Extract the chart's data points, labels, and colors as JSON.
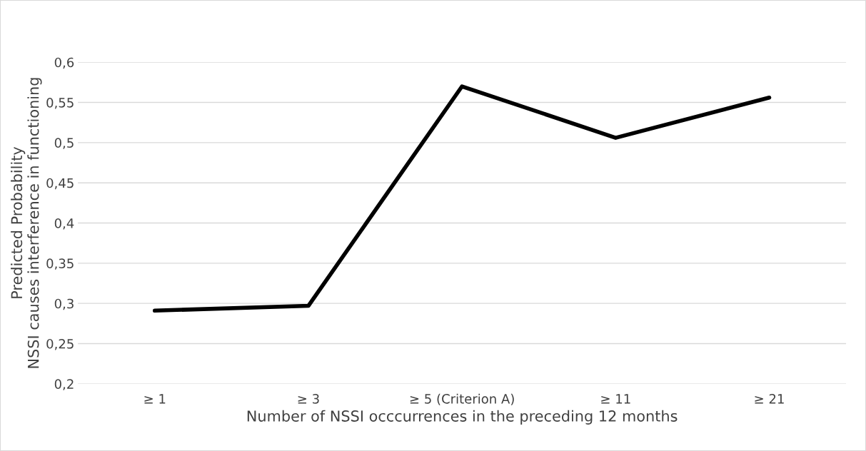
{
  "chart_data": {
    "type": "line",
    "xlabel": "Number of NSSI occcurrences in the preceding 12 months",
    "ylabel": "Predicted Probability\nNSSI causes interference in functioning",
    "categories": [
      "≥ 1",
      "≥ 3",
      "≥ 5 (Criterion A)",
      "≥ 11",
      "≥ 21"
    ],
    "series": [
      {
        "color": "#000000",
        "values": [
          0.291,
          0.297,
          0.57,
          0.506,
          0.556
        ]
      }
    ],
    "ylim": [
      0.2,
      0.6
    ],
    "yticks": [
      {
        "value": 0.2,
        "label": "0,2"
      },
      {
        "value": 0.25,
        "label": "0,25"
      },
      {
        "value": 0.3,
        "label": "0,3"
      },
      {
        "value": 0.35,
        "label": "0,35"
      },
      {
        "value": 0.4,
        "label": "0,4"
      },
      {
        "value": 0.45,
        "label": "0,45"
      },
      {
        "value": 0.5,
        "label": "0,5"
      },
      {
        "value": 0.55,
        "label": "0,55"
      },
      {
        "value": 0.6,
        "label": "0,6"
      }
    ],
    "grid": "y",
    "marker": "none",
    "line_style": "solid"
  }
}
